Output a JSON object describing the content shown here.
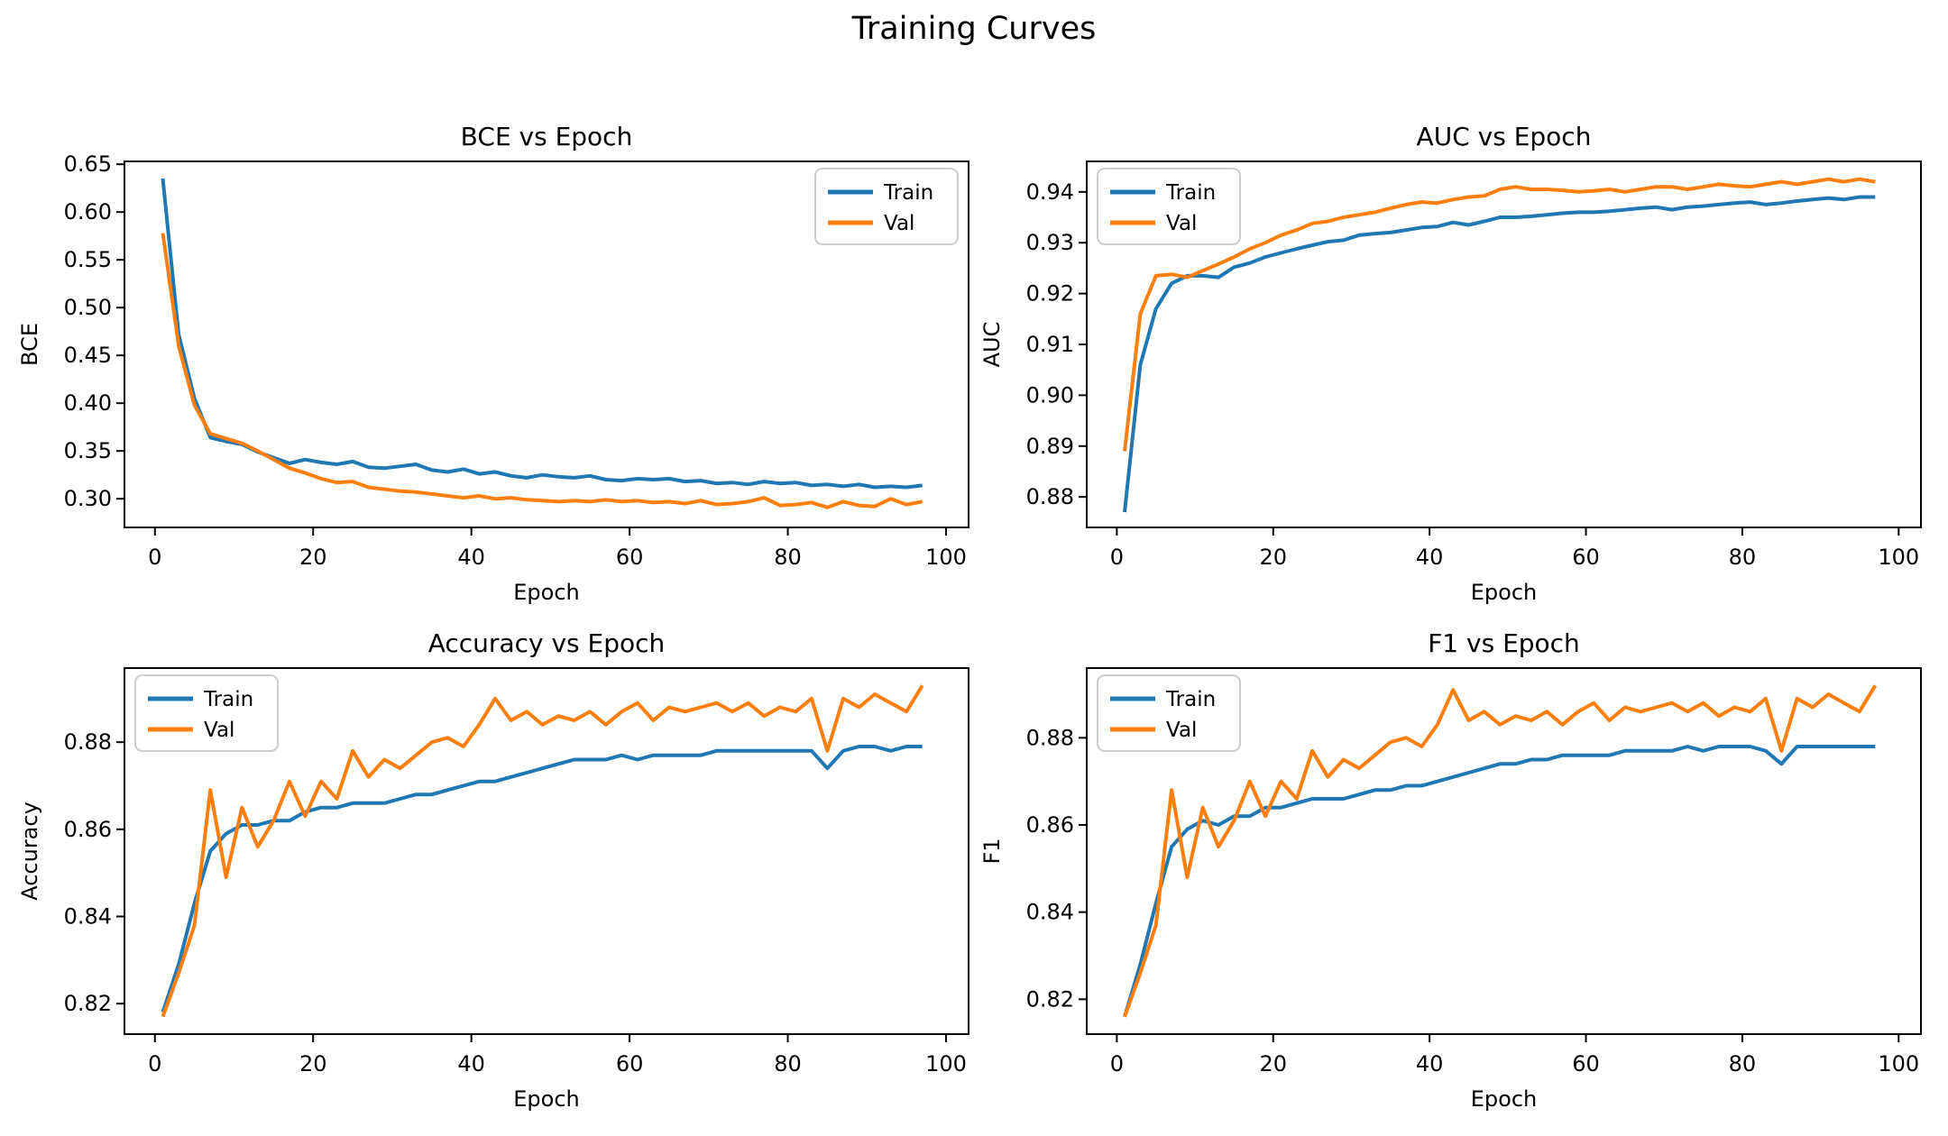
{
  "figure": {
    "title": "Training Curves",
    "background": "#ffffff"
  },
  "colors": {
    "train": "#1f77b4",
    "val": "#ff7f0e",
    "axis": "#000000",
    "legend_border": "#cccccc",
    "legend_bg": "#ffffff"
  },
  "chart_data": [
    {
      "id": "bce",
      "type": "line",
      "title": "BCE vs Epoch",
      "xlabel": "Epoch",
      "ylabel": "BCE",
      "grid": false,
      "legend_position": "upper-right",
      "xlim": [
        -3.85,
        102.85
      ],
      "ylim": [
        0.27,
        0.653
      ],
      "xticks": [
        0,
        20,
        40,
        60,
        80,
        100
      ],
      "yticks": [
        0.3,
        0.35,
        0.4,
        0.45,
        0.5,
        0.55,
        0.6,
        0.65
      ],
      "ytick_decimals": 2,
      "x": [
        1,
        3,
        5,
        7,
        9,
        11,
        13,
        15,
        17,
        19,
        21,
        23,
        25,
        27,
        29,
        31,
        33,
        35,
        37,
        39,
        41,
        43,
        45,
        47,
        49,
        51,
        53,
        55,
        57,
        59,
        61,
        63,
        65,
        67,
        69,
        71,
        73,
        75,
        77,
        79,
        81,
        83,
        85,
        87,
        89,
        91,
        93,
        95,
        97
      ],
      "series": [
        {
          "name": "Train",
          "color": "#1f77b4",
          "values": [
            0.635,
            0.472,
            0.405,
            0.364,
            0.36,
            0.357,
            0.349,
            0.343,
            0.337,
            0.341,
            0.338,
            0.336,
            0.339,
            0.333,
            0.332,
            0.334,
            0.336,
            0.33,
            0.328,
            0.331,
            0.326,
            0.328,
            0.324,
            0.322,
            0.325,
            0.323,
            0.322,
            0.324,
            0.32,
            0.319,
            0.321,
            0.32,
            0.321,
            0.318,
            0.319,
            0.316,
            0.317,
            0.315,
            0.318,
            0.316,
            0.317,
            0.314,
            0.315,
            0.313,
            0.315,
            0.312,
            0.313,
            0.312,
            0.314
          ]
        },
        {
          "name": "Val",
          "color": "#ff7f0e",
          "values": [
            0.578,
            0.46,
            0.398,
            0.368,
            0.363,
            0.358,
            0.35,
            0.341,
            0.332,
            0.327,
            0.321,
            0.317,
            0.318,
            0.312,
            0.31,
            0.308,
            0.307,
            0.305,
            0.303,
            0.301,
            0.303,
            0.3,
            0.301,
            0.299,
            0.298,
            0.297,
            0.298,
            0.297,
            0.299,
            0.297,
            0.298,
            0.296,
            0.297,
            0.295,
            0.298,
            0.294,
            0.295,
            0.297,
            0.301,
            0.293,
            0.294,
            0.296,
            0.291,
            0.297,
            0.293,
            0.292,
            0.3,
            0.294,
            0.297
          ]
        }
      ]
    },
    {
      "id": "auc",
      "type": "line",
      "title": "AUC vs Epoch",
      "xlabel": "Epoch",
      "ylabel": "AUC",
      "grid": false,
      "legend_position": "upper-left",
      "xlim": [
        -3.85,
        102.85
      ],
      "ylim": [
        0.874,
        0.946
      ],
      "xticks": [
        0,
        20,
        40,
        60,
        80,
        100
      ],
      "yticks": [
        0.88,
        0.89,
        0.9,
        0.91,
        0.92,
        0.93,
        0.94
      ],
      "ytick_decimals": 2,
      "x": [
        1,
        3,
        5,
        7,
        9,
        11,
        13,
        15,
        17,
        19,
        21,
        23,
        25,
        27,
        29,
        31,
        33,
        35,
        37,
        39,
        41,
        43,
        45,
        47,
        49,
        51,
        53,
        55,
        57,
        59,
        61,
        63,
        65,
        67,
        69,
        71,
        73,
        75,
        77,
        79,
        81,
        83,
        85,
        87,
        89,
        91,
        93,
        95,
        97
      ],
      "series": [
        {
          "name": "Train",
          "color": "#1f77b4",
          "values": [
            0.877,
            0.906,
            0.917,
            0.922,
            0.9235,
            0.9235,
            0.9232,
            0.9252,
            0.926,
            0.9272,
            0.928,
            0.9288,
            0.9295,
            0.9302,
            0.9305,
            0.9315,
            0.9318,
            0.932,
            0.9325,
            0.933,
            0.9332,
            0.934,
            0.9335,
            0.9342,
            0.935,
            0.935,
            0.9352,
            0.9355,
            0.9358,
            0.936,
            0.936,
            0.9362,
            0.9365,
            0.9368,
            0.937,
            0.9365,
            0.937,
            0.9372,
            0.9375,
            0.9378,
            0.938,
            0.9375,
            0.9378,
            0.9382,
            0.9385,
            0.9388,
            0.9385,
            0.939,
            0.939
          ]
        },
        {
          "name": "Val",
          "color": "#ff7f0e",
          "values": [
            0.889,
            0.916,
            0.9235,
            0.9238,
            0.9232,
            0.9245,
            0.9258,
            0.9272,
            0.9288,
            0.93,
            0.9315,
            0.9325,
            0.9338,
            0.9342,
            0.935,
            0.9355,
            0.936,
            0.9368,
            0.9375,
            0.938,
            0.9378,
            0.9385,
            0.939,
            0.9392,
            0.9405,
            0.941,
            0.9405,
            0.9405,
            0.9403,
            0.94,
            0.9402,
            0.9405,
            0.94,
            0.9405,
            0.941,
            0.941,
            0.9405,
            0.941,
            0.9415,
            0.9412,
            0.941,
            0.9415,
            0.942,
            0.9415,
            0.942,
            0.9425,
            0.942,
            0.9425,
            0.942
          ]
        }
      ]
    },
    {
      "id": "accuracy",
      "type": "line",
      "title": "Accuracy vs Epoch",
      "xlabel": "Epoch",
      "ylabel": "Accuracy",
      "grid": false,
      "legend_position": "upper-left",
      "xlim": [
        -3.85,
        102.85
      ],
      "ylim": [
        0.813,
        0.897
      ],
      "xticks": [
        0,
        20,
        40,
        60,
        80,
        100
      ],
      "yticks": [
        0.82,
        0.84,
        0.86,
        0.88
      ],
      "ytick_decimals": 2,
      "x": [
        1,
        3,
        5,
        7,
        9,
        11,
        13,
        15,
        17,
        19,
        21,
        23,
        25,
        27,
        29,
        31,
        33,
        35,
        37,
        39,
        41,
        43,
        45,
        47,
        49,
        51,
        53,
        55,
        57,
        59,
        61,
        63,
        65,
        67,
        69,
        71,
        73,
        75,
        77,
        79,
        81,
        83,
        85,
        87,
        89,
        91,
        93,
        95,
        97
      ],
      "series": [
        {
          "name": "Train",
          "color": "#1f77b4",
          "values": [
            0.818,
            0.829,
            0.843,
            0.855,
            0.859,
            0.861,
            0.861,
            0.862,
            0.862,
            0.864,
            0.865,
            0.865,
            0.866,
            0.866,
            0.866,
            0.867,
            0.868,
            0.868,
            0.869,
            0.87,
            0.871,
            0.871,
            0.872,
            0.873,
            0.874,
            0.875,
            0.876,
            0.876,
            0.876,
            0.877,
            0.876,
            0.877,
            0.877,
            0.877,
            0.877,
            0.878,
            0.878,
            0.878,
            0.878,
            0.878,
            0.878,
            0.878,
            0.874,
            0.878,
            0.879,
            0.879,
            0.878,
            0.879,
            0.879
          ]
        },
        {
          "name": "Val",
          "color": "#ff7f0e",
          "values": [
            0.817,
            0.827,
            0.838,
            0.869,
            0.849,
            0.865,
            0.856,
            0.862,
            0.871,
            0.863,
            0.871,
            0.867,
            0.878,
            0.872,
            0.876,
            0.874,
            0.877,
            0.88,
            0.881,
            0.879,
            0.884,
            0.89,
            0.885,
            0.887,
            0.884,
            0.886,
            0.885,
            0.887,
            0.884,
            0.887,
            0.889,
            0.885,
            0.888,
            0.887,
            0.888,
            0.889,
            0.887,
            0.889,
            0.886,
            0.888,
            0.887,
            0.89,
            0.878,
            0.89,
            0.888,
            0.891,
            0.889,
            0.887,
            0.893
          ]
        }
      ]
    },
    {
      "id": "f1",
      "type": "line",
      "title": "F1 vs Epoch",
      "xlabel": "Epoch",
      "ylabel": "F1",
      "grid": false,
      "legend_position": "upper-left",
      "xlim": [
        -3.85,
        102.85
      ],
      "ylim": [
        0.812,
        0.896
      ],
      "xticks": [
        0,
        20,
        40,
        60,
        80,
        100
      ],
      "yticks": [
        0.82,
        0.84,
        0.86,
        0.88
      ],
      "ytick_decimals": 2,
      "x": [
        1,
        3,
        5,
        7,
        9,
        11,
        13,
        15,
        17,
        19,
        21,
        23,
        25,
        27,
        29,
        31,
        33,
        35,
        37,
        39,
        41,
        43,
        45,
        47,
        49,
        51,
        53,
        55,
        57,
        59,
        61,
        63,
        65,
        67,
        69,
        71,
        73,
        75,
        77,
        79,
        81,
        83,
        85,
        87,
        89,
        91,
        93,
        95,
        97
      ],
      "series": [
        {
          "name": "Train",
          "color": "#1f77b4",
          "values": [
            0.816,
            0.828,
            0.842,
            0.855,
            0.859,
            0.861,
            0.86,
            0.862,
            0.862,
            0.864,
            0.864,
            0.865,
            0.866,
            0.866,
            0.866,
            0.867,
            0.868,
            0.868,
            0.869,
            0.869,
            0.87,
            0.871,
            0.872,
            0.873,
            0.874,
            0.874,
            0.875,
            0.875,
            0.876,
            0.876,
            0.876,
            0.876,
            0.877,
            0.877,
            0.877,
            0.877,
            0.878,
            0.877,
            0.878,
            0.878,
            0.878,
            0.877,
            0.874,
            0.878,
            0.878,
            0.878,
            0.878,
            0.878,
            0.878
          ]
        },
        {
          "name": "Val",
          "color": "#ff7f0e",
          "values": [
            0.816,
            0.826,
            0.837,
            0.868,
            0.848,
            0.864,
            0.855,
            0.861,
            0.87,
            0.862,
            0.87,
            0.866,
            0.877,
            0.871,
            0.875,
            0.873,
            0.876,
            0.879,
            0.88,
            0.878,
            0.883,
            0.891,
            0.884,
            0.886,
            0.883,
            0.885,
            0.884,
            0.886,
            0.883,
            0.886,
            0.888,
            0.884,
            0.887,
            0.886,
            0.887,
            0.888,
            0.886,
            0.888,
            0.885,
            0.887,
            0.886,
            0.889,
            0.877,
            0.889,
            0.887,
            0.89,
            0.888,
            0.886,
            0.892
          ]
        }
      ]
    }
  ]
}
